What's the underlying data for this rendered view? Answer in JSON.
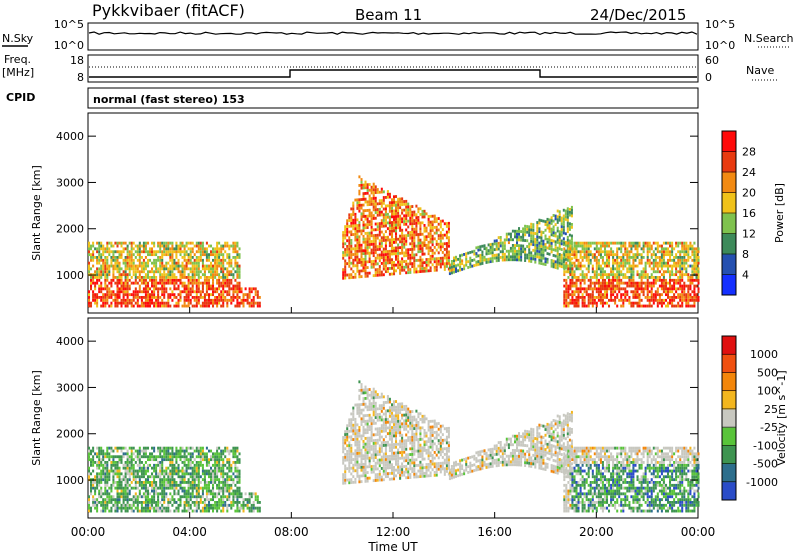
{
  "header": {
    "station": "Pykkvibaer (fitACF)",
    "beam": "Beam 11",
    "date": "24/Dec/2015"
  },
  "noise_panel": {
    "left_label": "N.Sky",
    "left_ticks": [
      "10^5",
      "10^0"
    ],
    "right_label": "N.Search",
    "right_ticks": [
      "10^5",
      "10^0"
    ]
  },
  "freq_panel": {
    "left_label_lines": [
      "Freq.",
      "[MHz]"
    ],
    "left_ticks": [
      "18",
      "8"
    ],
    "right_label": "Nave",
    "right_ticks": [
      "60",
      "0"
    ]
  },
  "cpid": {
    "label": "CPID",
    "text": "normal (fast stereo) 153"
  },
  "chart_data": [
    {
      "type": "heatmap",
      "title": "Power",
      "ylabel": "Slant Range [km]",
      "y_ticks": [
        "1000",
        "2000",
        "3000",
        "4000"
      ],
      "ylim": [
        180,
        4500
      ],
      "xlim": [
        0,
        24
      ],
      "colorbar": {
        "label": "Power [dB]",
        "ticks": [
          "4",
          "8",
          "12",
          "16",
          "20",
          "24",
          "28"
        ],
        "colors": [
          "#1530ff",
          "#2550b0",
          "#3d8a5a",
          "#7fc24e",
          "#f0c21a",
          "#f28a12",
          "#e83a10",
          "#ff0a0a"
        ]
      },
      "echo_regions": [
        {
          "t": [
            0.0,
            6.8
          ],
          "r": [
            300,
            1700
          ],
          "level": "strong-low"
        },
        {
          "t": [
            10.0,
            14.2
          ],
          "r": [
            900,
            3100
          ],
          "level": "strong-high"
        },
        {
          "t": [
            14.2,
            19.0
          ],
          "r": [
            1000,
            2500
          ],
          "level": "weak"
        },
        {
          "t": [
            18.7,
            24.0
          ],
          "r": [
            300,
            1700
          ],
          "level": "strong-low"
        }
      ]
    },
    {
      "type": "heatmap",
      "title": "Velocity",
      "ylabel": "Slant Range [km]",
      "y_ticks": [
        "1000",
        "2000",
        "3000",
        "4000"
      ],
      "ylim": [
        180,
        4500
      ],
      "xlim": [
        0,
        24
      ],
      "x_ticks": [
        "00:00",
        "04:00",
        "08:00",
        "12:00",
        "16:00",
        "20:00",
        "00:00"
      ],
      "xlabel": "Time UT",
      "colorbar": {
        "label": "Velocity [m s^-1]",
        "ticks": [
          "1000",
          "500",
          "100",
          "25",
          "-25",
          "-100",
          "-500",
          "-1000"
        ],
        "colors": [
          "#2a4cc8",
          "#2d6e8c",
          "#3e9450",
          "#59c43a",
          "#c8c8c0",
          "#f3b61e",
          "#f3860a",
          "#f05010",
          "#e01010"
        ]
      }
    }
  ]
}
